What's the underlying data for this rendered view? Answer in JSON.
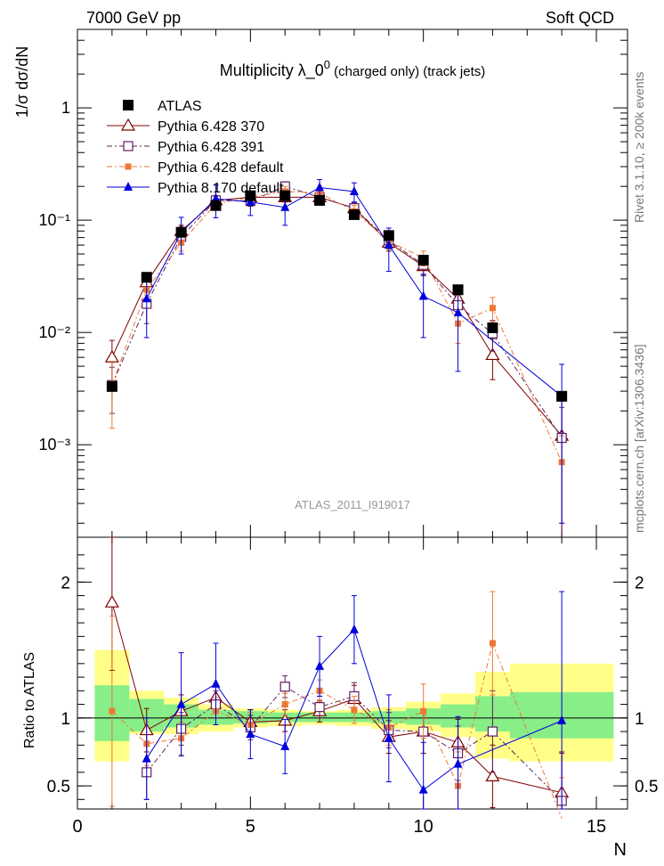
{
  "header": {
    "left": "7000 GeV pp",
    "right": "Soft QCD"
  },
  "side_labels": {
    "top": "Rivet 3.1.10, ≥ 200k events",
    "bottom": "mcplots.cern.ch [arXiv:1306.3436]"
  },
  "chart_data": [
    {
      "type": "line",
      "panel": "main",
      "title_main": "Multiplicity  λ_0",
      "title_sup": "0",
      "title_suffix": " (charged only) (track jets)",
      "ylabel": "1/σ dσ/dN",
      "yscale": "log",
      "ylim": [
        0.00015,
        5
      ],
      "xlim": [
        0,
        15.9
      ],
      "y_ticks": [
        {
          "value": 1,
          "label": "1"
        },
        {
          "value": 0.1,
          "label": "10⁻¹"
        },
        {
          "value": 0.01,
          "label": "10⁻²"
        },
        {
          "value": 0.001,
          "label": "10⁻³"
        }
      ],
      "watermark": "ATLAS_2011_I919017",
      "x": [
        1,
        2,
        3,
        4,
        5,
        6,
        7,
        8,
        9,
        10,
        11,
        12,
        14
      ],
      "series": [
        {
          "name": "ATLAS",
          "color": "#000000",
          "marker": "filled-square",
          "line": "none",
          "values": [
            0.0033,
            0.031,
            0.078,
            0.135,
            0.165,
            0.165,
            0.15,
            0.112,
            0.073,
            0.044,
            0.024,
            0.011,
            0.0027
          ]
        },
        {
          "name": "Pythia 6.428 370",
          "color": "#800000",
          "marker": "open-triangle",
          "line": "solid",
          "values": [
            0.006,
            0.028,
            0.08,
            0.15,
            0.16,
            0.16,
            0.16,
            0.128,
            0.063,
            0.039,
            0.02,
            0.0063,
            0.0012
          ],
          "errors": [
            0.0025,
            0.005,
            0.01,
            0.015,
            0.015,
            0.015,
            0.015,
            0.015,
            0.01,
            0.007,
            0.004,
            0.0025,
            0.0015
          ]
        },
        {
          "name": "Pythia 6.428 391",
          "color": "#602060",
          "marker": "open-square",
          "line": "dashdot",
          "values": [
            0.0034,
            0.018,
            0.071,
            0.15,
            0.148,
            0.2,
            0.16,
            0.128,
            0.066,
            0.04,
            0.0175,
            0.0098,
            0.00115
          ],
          "errors": [
            0.0015,
            0.006,
            0.01,
            0.015,
            0.015,
            0.02,
            0.015,
            0.015,
            0.01,
            0.007,
            0.005,
            0.003,
            0.001
          ]
        },
        {
          "name": "Pythia 6.428 default",
          "color": "#ee7733",
          "marker": "filled-square-small",
          "line": "dashdot",
          "values": [
            0.0034,
            0.024,
            0.063,
            0.14,
            0.16,
            0.18,
            0.175,
            0.12,
            0.065,
            0.046,
            0.012,
            0.0165,
            0.0007
          ],
          "errors": [
            0.002,
            0.005,
            0.01,
            0.015,
            0.015,
            0.02,
            0.02,
            0.015,
            0.01,
            0.007,
            0.004,
            0.004,
            0.0005
          ]
        },
        {
          "name": "Pythia 8.170 default",
          "color": "#0000dd",
          "marker": "filled-triangle",
          "line": "solid",
          "values": [
            null,
            0.02,
            0.078,
            0.155,
            0.145,
            0.13,
            0.195,
            0.18,
            0.06,
            0.021,
            0.015,
            null,
            0.0027
          ],
          "errors": [
            null,
            0.011,
            0.028,
            0.05,
            0.035,
            0.04,
            0.035,
            0.035,
            0.025,
            0.012,
            0.0105,
            null,
            0.0025
          ]
        }
      ]
    },
    {
      "type": "line",
      "panel": "ratio",
      "ylabel": "Ratio to ATLAS",
      "xlabel": "N",
      "ylim": [
        0.33,
        2.33
      ],
      "xlim": [
        0,
        15.9
      ],
      "y_ticks": [
        {
          "value": 2,
          "label": "2"
        },
        {
          "value": 1,
          "label": "1"
        },
        {
          "value": 0.5,
          "label": "0.5"
        }
      ],
      "x_ticks": [
        {
          "value": 0,
          "label": "0"
        },
        {
          "value": 5,
          "label": "5"
        },
        {
          "value": 10,
          "label": "10"
        },
        {
          "value": 15,
          "label": "15"
        }
      ],
      "bands": [
        {
          "x0": 0.5,
          "x1": 1.5,
          "green": [
            0.83,
            1.24
          ],
          "yellow": [
            0.68,
            1.5
          ]
        },
        {
          "x0": 1.5,
          "x1": 2.5,
          "green": [
            0.9,
            1.14
          ],
          "yellow": [
            0.88,
            1.2
          ]
        },
        {
          "x0": 2.5,
          "x1": 3.5,
          "green": [
            0.93,
            1.1
          ],
          "yellow": [
            0.88,
            1.15
          ]
        },
        {
          "x0": 3.5,
          "x1": 4.5,
          "green": [
            0.95,
            1.06
          ],
          "yellow": [
            0.9,
            1.1
          ]
        },
        {
          "x0": 4.5,
          "x1": 5.5,
          "green": [
            0.96,
            1.05
          ],
          "yellow": [
            0.93,
            1.07
          ]
        },
        {
          "x0": 5.5,
          "x1": 6.5,
          "green": [
            0.97,
            1.04
          ],
          "yellow": [
            0.94,
            1.06
          ]
        },
        {
          "x0": 6.5,
          "x1": 7.5,
          "green": [
            0.97,
            1.04
          ],
          "yellow": [
            0.95,
            1.05
          ]
        },
        {
          "x0": 7.5,
          "x1": 8.5,
          "green": [
            0.97,
            1.04
          ],
          "yellow": [
            0.94,
            1.06
          ]
        },
        {
          "x0": 8.5,
          "x1": 9.5,
          "green": [
            0.96,
            1.05
          ],
          "yellow": [
            0.92,
            1.08
          ]
        },
        {
          "x0": 9.5,
          "x1": 10.5,
          "green": [
            0.95,
            1.07
          ],
          "yellow": [
            0.9,
            1.12
          ]
        },
        {
          "x0": 10.5,
          "x1": 11.5,
          "green": [
            0.93,
            1.1
          ],
          "yellow": [
            0.86,
            1.18
          ]
        },
        {
          "x0": 11.5,
          "x1": 12.5,
          "green": [
            0.9,
            1.16
          ],
          "yellow": [
            0.7,
            1.34
          ]
        },
        {
          "x0": 12.5,
          "x1": 15.5,
          "green": [
            0.85,
            1.19
          ],
          "yellow": [
            0.68,
            1.4
          ]
        }
      ],
      "series": [
        {
          "name": "Pythia 6.428 370",
          "values": [
            1.85,
            0.91,
            1.05,
            1.15,
            0.97,
            0.98,
            1.05,
            1.14,
            0.86,
            0.9,
            0.82,
            0.57,
            0.45
          ],
          "errors": [
            0.5,
            0.16,
            0.12,
            0.1,
            0.09,
            0.08,
            0.08,
            0.1,
            0.12,
            0.16,
            0.17,
            0.23,
            0.3
          ]
        },
        {
          "name": "Pythia 6.428 391",
          "values": [
            null,
            0.6,
            0.92,
            1.1,
            0.93,
            1.23,
            1.08,
            1.16,
            0.91,
            0.9,
            0.74,
            0.9,
            0.39
          ],
          "errors": [
            null,
            0.2,
            0.12,
            0.1,
            0.09,
            0.08,
            0.08,
            0.1,
            0.13,
            0.16,
            0.2,
            0.3,
            0.35
          ]
        },
        {
          "name": "Pythia 6.428 default",
          "values": [
            1.05,
            0.81,
            0.85,
            1.05,
            0.95,
            1.1,
            1.2,
            1.06,
            0.93,
            1.05,
            0.5,
            1.55,
            0.26
          ],
          "errors": [
            0.7,
            0.16,
            0.12,
            0.1,
            0.09,
            0.08,
            0.08,
            0.1,
            0.13,
            0.2,
            0.25,
            0.38,
            0.3
          ]
        },
        {
          "name": "Pythia 8.170 default",
          "values": [
            null,
            0.7,
            1.1,
            1.25,
            0.88,
            0.79,
            1.38,
            1.65,
            0.85,
            0.47,
            0.66,
            null,
            0.98
          ],
          "errors": [
            null,
            0.3,
            0.38,
            0.3,
            0.18,
            0.2,
            0.22,
            0.25,
            0.32,
            0.35,
            0.35,
            null,
            0.95
          ]
        }
      ]
    }
  ]
}
